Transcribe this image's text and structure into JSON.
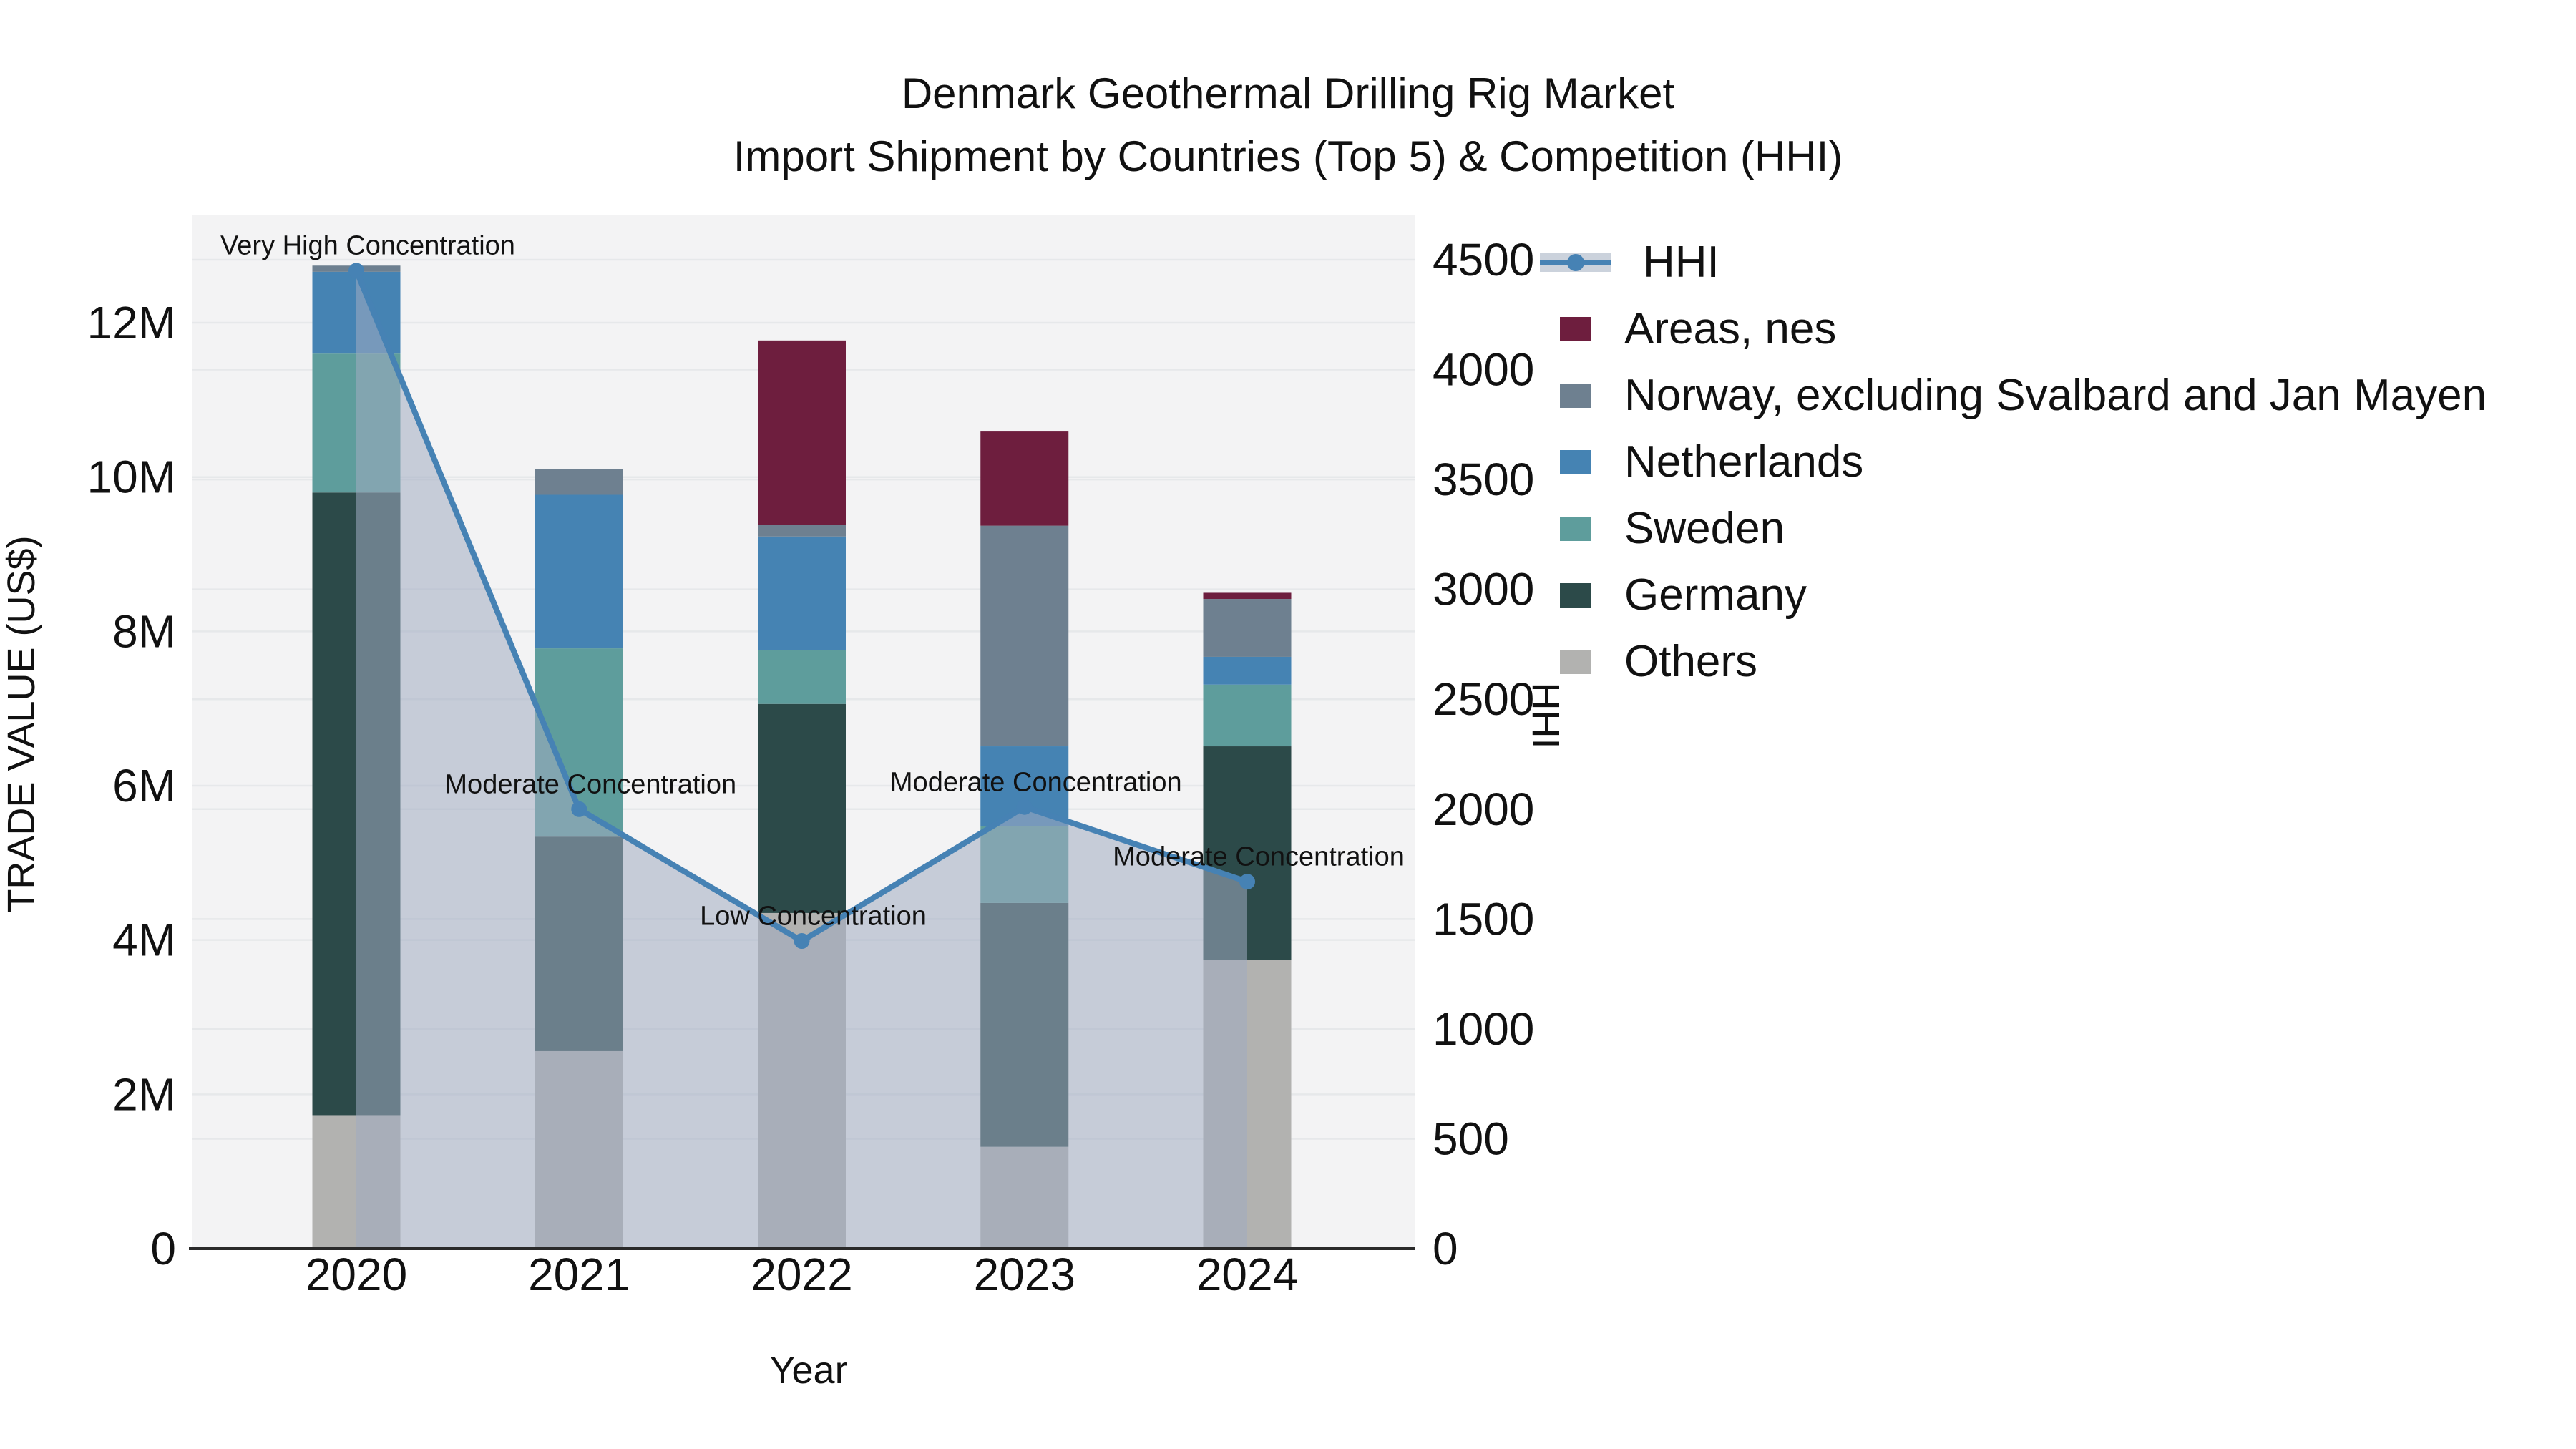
{
  "title": {
    "line1": "Denmark Geothermal Drilling Rig Market",
    "line2": "Import Shipment by Countries (Top 5) & Competition (HHI)"
  },
  "legend": {
    "items": [
      {
        "label": "HHI",
        "type": "line",
        "color": "#4682B4",
        "band_color": "#CBD2DC"
      },
      {
        "label": "Areas, nes",
        "type": "patch",
        "color": "#6E1E3E"
      },
      {
        "label": "Norway, excluding Svalbard and Jan Mayen",
        "type": "patch",
        "color": "#6E8090"
      },
      {
        "label": "Netherlands",
        "type": "patch",
        "color": "#4583B3"
      },
      {
        "label": "Sweden",
        "type": "patch",
        "color": "#5E9D9C"
      },
      {
        "label": "Germany",
        "type": "patch",
        "color": "#2C4A49"
      },
      {
        "label": "Others",
        "type": "patch",
        "color": "#B2B2B0"
      }
    ]
  },
  "chart_data": {
    "type": "bar",
    "subtype": "stacked-bars-with-line-overlay-dual-axis",
    "title": "Denmark Geothermal Drilling Rig Market — Import Shipment by Countries (Top 5) & Competition (HHI)",
    "categories": [
      "2020",
      "2021",
      "2022",
      "2023",
      "2024"
    ],
    "xlabel": "Year",
    "series": [
      {
        "name": "Areas, nes",
        "color": "#6E1E3E",
        "values_musd": [
          0,
          0,
          2.39,
          1.22,
          0.08
        ]
      },
      {
        "name": "Norway, excluding Svalbard and Jan Mayen",
        "color": "#6E8090",
        "values_musd": [
          0.08,
          0.33,
          0.15,
          2.86,
          0.75
        ]
      },
      {
        "name": "Netherlands",
        "color": "#4583B3",
        "values_musd": [
          1.06,
          1.99,
          1.47,
          1.03,
          0.36
        ]
      },
      {
        "name": "Sweden",
        "color": "#5E9D9C",
        "values_musd": [
          1.8,
          2.44,
          0.7,
          1.0,
          0.8
        ]
      },
      {
        "name": "Germany",
        "color": "#2C4A49",
        "values_musd": [
          8.07,
          2.78,
          2.71,
          3.16,
          2.77
        ]
      },
      {
        "name": "Others",
        "color": "#B2B2B0",
        "values_musd": [
          1.73,
          2.56,
          4.35,
          1.32,
          3.74
        ]
      }
    ],
    "stack_order_bottom_to_top": [
      "Others",
      "Germany",
      "Sweden",
      "Netherlands",
      "Norway, excluding Svalbard and Jan Mayen",
      "Areas, nes"
    ],
    "bar_totals_musd": [
      12.74,
      10.1,
      11.77,
      10.59,
      8.5
    ],
    "hhi": {
      "name": "HHI",
      "color": "#4682B4",
      "area_fill_color": "#A0ACC1",
      "area_fill_opacity": 0.55,
      "values": [
        4450,
        2000,
        1400,
        2010,
        1670
      ]
    },
    "annotations": [
      {
        "year": "2020",
        "text": "Very High Concentration"
      },
      {
        "year": "2021",
        "text": "Moderate Concentration"
      },
      {
        "year": "2022",
        "text": "Low Concentration"
      },
      {
        "year": "2023",
        "text": "Moderate Concentration"
      },
      {
        "year": "2024",
        "text": "Moderate Concentration"
      }
    ],
    "left_axis": {
      "label": "TRADE VALUE (US$)",
      "ticks": [
        "0",
        "2M",
        "4M",
        "6M",
        "8M",
        "10M",
        "12M"
      ],
      "tick_values_musd": [
        0,
        2,
        4,
        6,
        8,
        10,
        12
      ],
      "range_musd": [
        0,
        13.4
      ]
    },
    "right_axis": {
      "label": "HHI",
      "ticks": [
        "0",
        "500",
        "1000",
        "1500",
        "2000",
        "2500",
        "3000",
        "3500",
        "4000",
        "4500"
      ],
      "tick_values": [
        0,
        500,
        1000,
        1500,
        2000,
        2500,
        3000,
        3500,
        4000,
        4500
      ],
      "range": [
        0,
        4500
      ]
    },
    "grid": true,
    "legend_position": "right",
    "plot_bg_color": "#F3F3F4",
    "grid_color": "#E6E8EA"
  }
}
